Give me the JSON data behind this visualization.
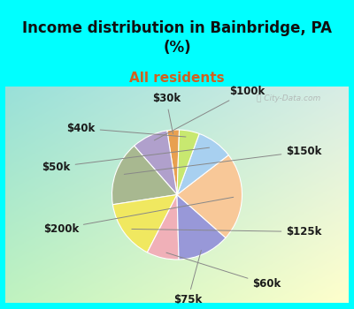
{
  "title": "Income distribution in Bainbridge, PA\n(%)",
  "subtitle": "All residents",
  "watermark": "ⓘ City-Data.com",
  "labels": [
    "$30k",
    "$100k",
    "$150k",
    "$125k",
    "$60k",
    "$75k",
    "$200k",
    "$50k",
    "$40k"
  ],
  "sizes": [
    3,
    9,
    16,
    15,
    8,
    13,
    22,
    9,
    5
  ],
  "colors": [
    "#e8a050",
    "#b0a0cc",
    "#a8b890",
    "#f0e860",
    "#f0b0b8",
    "#9898d8",
    "#f8c898",
    "#a8d0f0",
    "#c8e870"
  ],
  "bg_top": "#00ffff",
  "chart_bg_colors": [
    "#ffffff",
    "#c0e8d8"
  ],
  "title_color": "#101010",
  "subtitle_color": "#d06020",
  "figsize": [
    4.0,
    3.5
  ],
  "dpi": 100,
  "startangle": 88,
  "label_fontsize": 8.5,
  "title_fontsize": 12,
  "subtitle_fontsize": 11
}
